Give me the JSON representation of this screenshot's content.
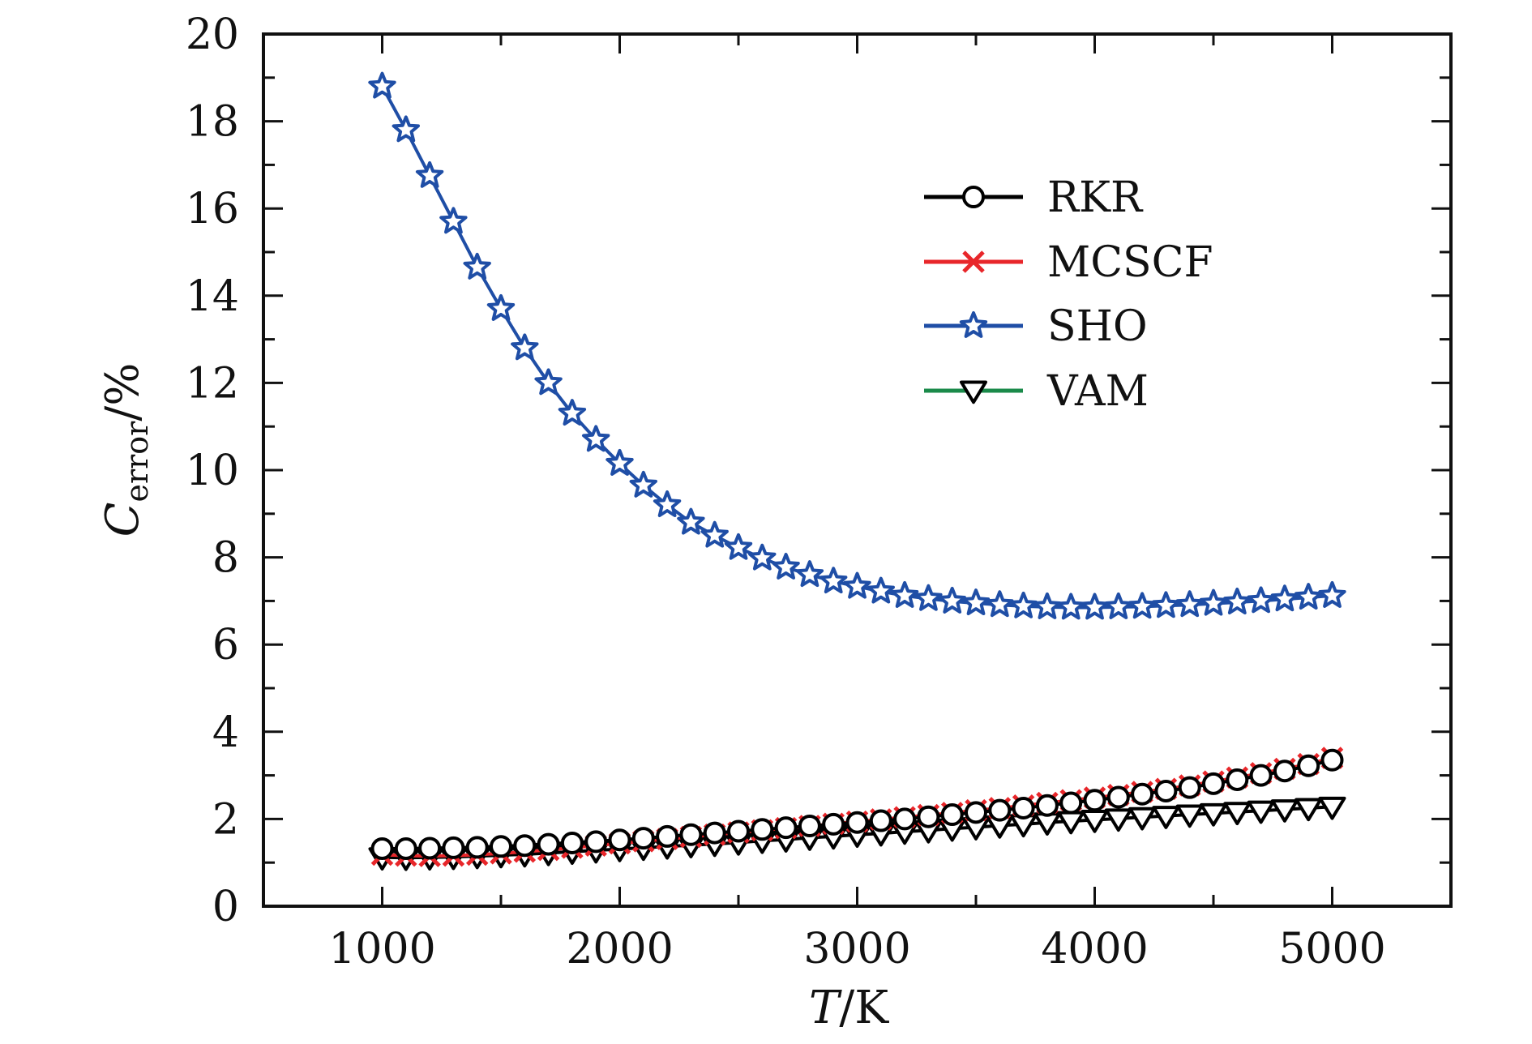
{
  "chart_data": {
    "type": "line",
    "xlabel_italic": "T",
    "xlabel_rest": "/K",
    "ylabel_main": "C",
    "ylabel_sub": "error",
    "ylabel_rest": "/%",
    "xlim": [
      500,
      5500
    ],
    "ylim": [
      0,
      20
    ],
    "x_ticks": [
      1000,
      2000,
      3000,
      4000,
      5000
    ],
    "y_ticks": [
      0,
      2,
      4,
      6,
      8,
      10,
      12,
      14,
      16,
      18,
      20
    ],
    "grid": false,
    "legend_position": "top-right",
    "x": [
      1000,
      1100,
      1200,
      1300,
      1400,
      1500,
      1600,
      1700,
      1800,
      1900,
      2000,
      2100,
      2200,
      2300,
      2400,
      2500,
      2600,
      2700,
      2800,
      2900,
      3000,
      3100,
      3200,
      3300,
      3400,
      3500,
      3600,
      3700,
      3800,
      3900,
      4000,
      4100,
      4200,
      4300,
      4400,
      4500,
      4600,
      4700,
      4800,
      4900,
      5000
    ],
    "series": [
      {
        "name": "RKR",
        "color": "#000000",
        "marker": "circle",
        "values": [
          1.32,
          1.32,
          1.33,
          1.34,
          1.35,
          1.37,
          1.39,
          1.42,
          1.45,
          1.48,
          1.52,
          1.56,
          1.6,
          1.64,
          1.68,
          1.72,
          1.76,
          1.8,
          1.84,
          1.88,
          1.92,
          1.96,
          2.0,
          2.05,
          2.1,
          2.15,
          2.2,
          2.25,
          2.31,
          2.37,
          2.43,
          2.5,
          2.57,
          2.64,
          2.72,
          2.81,
          2.9,
          3.0,
          3.1,
          3.22,
          3.35
        ]
      },
      {
        "name": "MCSCF",
        "color": "#e8262a",
        "marker": "cross",
        "values": [
          1.18,
          1.16,
          1.15,
          1.16,
          1.18,
          1.21,
          1.25,
          1.29,
          1.34,
          1.39,
          1.44,
          1.49,
          1.54,
          1.59,
          1.64,
          1.69,
          1.74,
          1.79,
          1.84,
          1.89,
          1.94,
          1.99,
          2.04,
          2.09,
          2.14,
          2.2,
          2.25,
          2.31,
          2.37,
          2.43,
          2.49,
          2.55,
          2.62,
          2.69,
          2.77,
          2.86,
          2.95,
          3.05,
          3.15,
          3.26,
          3.4
        ]
      },
      {
        "name": "SHO",
        "color": "#1f4ea6",
        "marker": "star",
        "values": [
          18.8,
          17.8,
          16.75,
          15.7,
          14.65,
          13.7,
          12.8,
          12.0,
          11.3,
          10.7,
          10.15,
          9.65,
          9.2,
          8.8,
          8.5,
          8.22,
          7.98,
          7.77,
          7.6,
          7.45,
          7.33,
          7.22,
          7.12,
          7.05,
          6.99,
          6.95,
          6.91,
          6.88,
          6.86,
          6.85,
          6.85,
          6.86,
          6.87,
          6.89,
          6.91,
          6.94,
          6.97,
          7.0,
          7.04,
          7.08,
          7.12
        ]
      },
      {
        "name": "VAM",
        "color": "#1a8a4a",
        "marker": "triangle-down",
        "values": [
          1.12,
          1.11,
          1.12,
          1.13,
          1.15,
          1.17,
          1.19,
          1.22,
          1.25,
          1.28,
          1.31,
          1.34,
          1.37,
          1.4,
          1.43,
          1.46,
          1.5,
          1.53,
          1.57,
          1.6,
          1.64,
          1.67,
          1.71,
          1.74,
          1.78,
          1.81,
          1.85,
          1.88,
          1.92,
          1.95,
          1.98,
          2.01,
          2.04,
          2.07,
          2.1,
          2.13,
          2.16,
          2.19,
          2.22,
          2.25,
          2.28
        ]
      }
    ]
  }
}
